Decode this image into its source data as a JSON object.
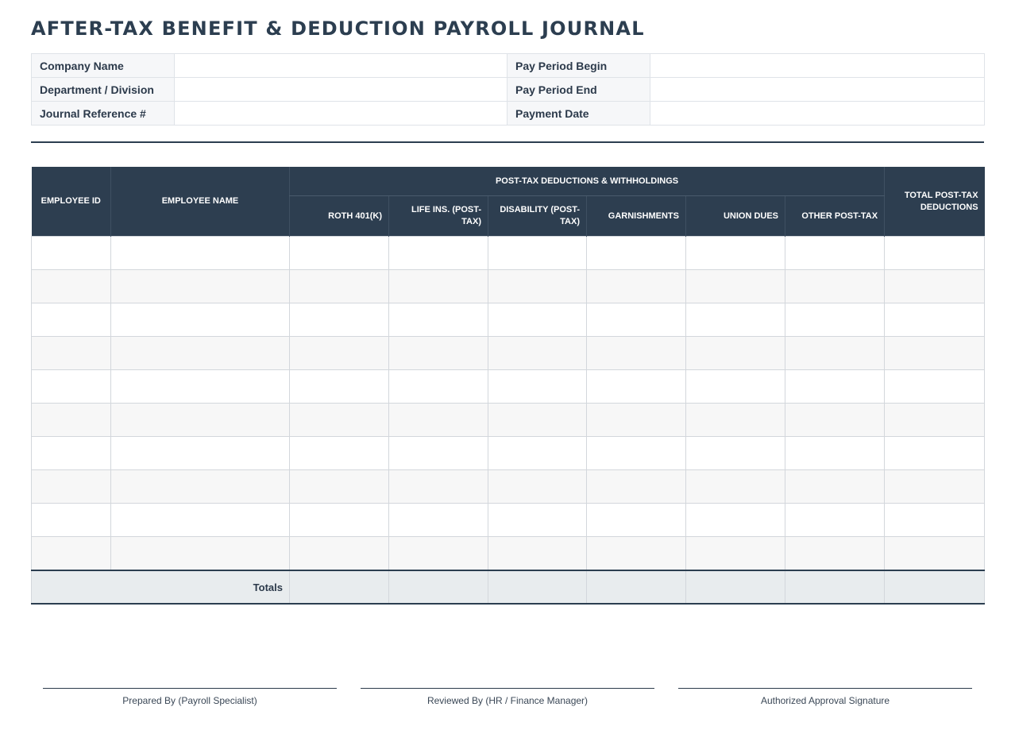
{
  "title": "AFTER-TAX BENEFIT & DEDUCTION PAYROLL JOURNAL",
  "info": {
    "company_name": "Company Name",
    "department": "Department / Division",
    "journal_ref": "Journal Reference #",
    "pay_period_begin": "Pay Period Begin",
    "pay_period_end": "Pay Period End",
    "payment_date": "Payment Date"
  },
  "table": {
    "employee_id": "EMPLOYEE ID",
    "employee_name": "EMPLOYEE NAME",
    "group": "POST-TAX DEDUCTIONS & WITHHOLDINGS",
    "columns": [
      "ROTH 401(K)",
      "LIFE INS. (POST-TAX)",
      "DISABILITY (POST-TAX)",
      "GARNISHMENTS",
      "UNION DUES",
      "OTHER POST-TAX"
    ],
    "total": "TOTAL POST-TAX DEDUCTIONS",
    "totals_label": "Totals"
  },
  "signatures": {
    "prepared": "Prepared By (Payroll Specialist)",
    "reviewed": "Reviewed By (HR / Finance Manager)",
    "approved": "Authorized Approval Signature"
  }
}
